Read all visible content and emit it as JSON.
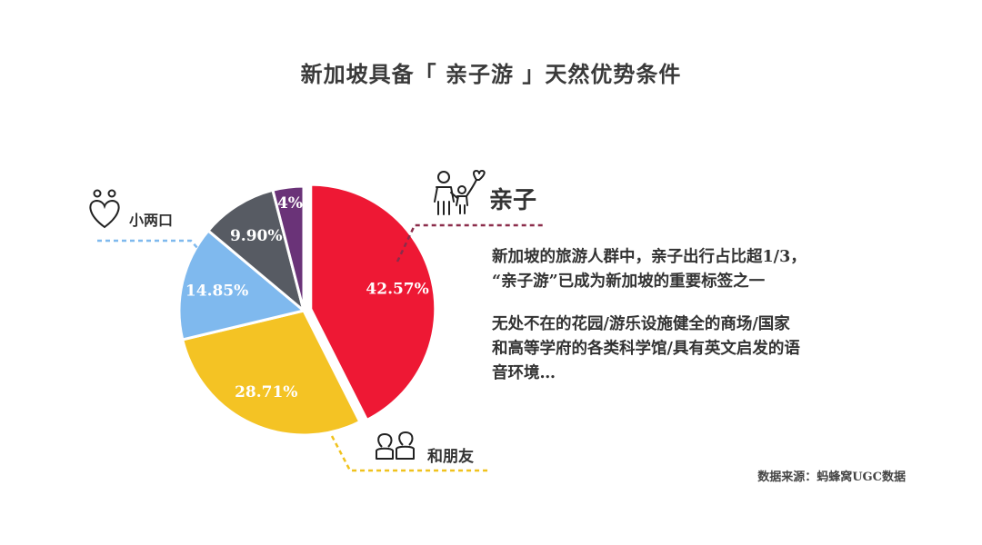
{
  "title": "新加坡具备「 亲子游 」天然优势条件",
  "colors": {
    "family": "#ee1834",
    "friends": "#f4c324",
    "couple": "#7fb9ee",
    "solo": "#575b63",
    "other": "#6a3378",
    "family_line": "#8b2c4a",
    "friends_line": "#f0c21d",
    "couple_line": "#7fb9ee"
  },
  "callouts": {
    "family": "亲子",
    "couple": "小两口",
    "friends": "和朋友"
  },
  "description": {
    "para1_lines": [
      "新加坡的旅游人群中，亲子出行占比超1/3，",
      "“亲子游”已成为新加坡的重要标签之一"
    ],
    "para2_lines": [
      "无处不在的花园/游乐设施健全的商场/国家",
      "和高等学府的各类科学馆/具有英文启发的语",
      "音环境…"
    ]
  },
  "source": "数据来源：蚂蜂窝UGC数据",
  "chart_data": {
    "type": "pie",
    "slices": [
      {
        "key": "family",
        "value": 42.57,
        "label": "42.57%",
        "exploded": true
      },
      {
        "key": "friends",
        "value": 28.71,
        "label": "28.71%"
      },
      {
        "key": "couple",
        "value": 14.85,
        "label": "14.85%"
      },
      {
        "key": "solo",
        "value": 9.9,
        "label": "9.90%"
      },
      {
        "key": "other",
        "value": 4,
        "label": "4%"
      }
    ],
    "start_angle_deg": 0,
    "direction": "clockwise"
  },
  "icons": {
    "family": "parent-child-balloon-icon",
    "couple": "couple-heart-icon",
    "friends": "friends-icon"
  }
}
